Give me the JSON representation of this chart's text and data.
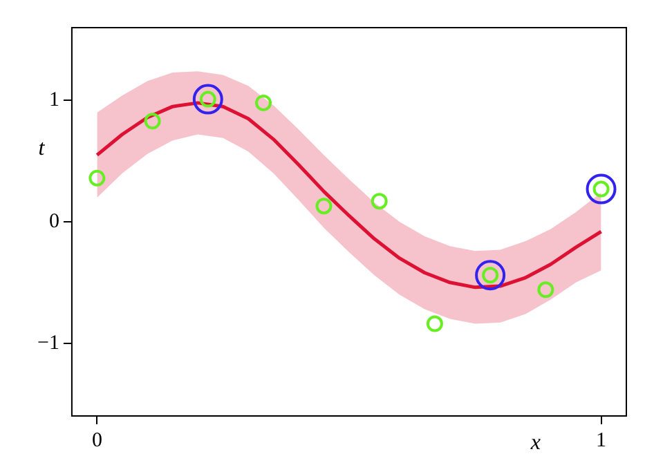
{
  "chart_data": {
    "type": "line",
    "xlabel": "x",
    "ylabel": "t",
    "xlim": [
      -0.05,
      1.05
    ],
    "ylim": [
      -1.6,
      1.6
    ],
    "xticks": [
      0,
      1
    ],
    "yticks": [
      -1,
      0,
      1
    ],
    "grid": false,
    "legend": false,
    "series": [
      {
        "color": "#dd1133",
        "marker": "none",
        "x": [
          0,
          0.05,
          0.1,
          0.15,
          0.2,
          0.25,
          0.3,
          0.35,
          0.4,
          0.45,
          0.5,
          0.55,
          0.6,
          0.65,
          0.7,
          0.75,
          0.8,
          0.85,
          0.9,
          0.95,
          1
        ],
        "values": [
          0.55,
          0.72,
          0.86,
          0.95,
          0.98,
          0.95,
          0.85,
          0.68,
          0.47,
          0.25,
          0.05,
          -0.14,
          -0.3,
          -0.42,
          -0.5,
          -0.54,
          -0.53,
          -0.46,
          -0.35,
          -0.21,
          -0.08
        ],
        "lower": [
          0.2,
          0.4,
          0.56,
          0.67,
          0.72,
          0.69,
          0.58,
          0.4,
          0.18,
          -0.05,
          -0.25,
          -0.44,
          -0.6,
          -0.72,
          -0.8,
          -0.84,
          -0.83,
          -0.76,
          -0.64,
          -0.5,
          -0.4
        ],
        "upper": [
          0.9,
          1.04,
          1.16,
          1.23,
          1.24,
          1.21,
          1.12,
          0.96,
          0.76,
          0.55,
          0.35,
          0.16,
          0,
          -0.12,
          -0.2,
          -0.24,
          -0.23,
          -0.16,
          -0.06,
          0.08,
          0.24
        ]
      },
      {
        "type": "scatter",
        "color": "#66ee22",
        "marker": "circle",
        "x": [
          0,
          0.11,
          0.22,
          0.33,
          0.45,
          0.56,
          0.67,
          0.78,
          0.89,
          1
        ],
        "values": [
          0.36,
          0.83,
          1.01,
          0.98,
          0.13,
          0.17,
          -0.84,
          -0.44,
          -0.56,
          0.27
        ]
      },
      {
        "type": "scatter",
        "color": "#3322ee",
        "marker": "circle",
        "x": [
          0.22,
          0.78,
          1
        ],
        "values": [
          1.01,
          -0.44,
          0.27
        ]
      }
    ]
  }
}
